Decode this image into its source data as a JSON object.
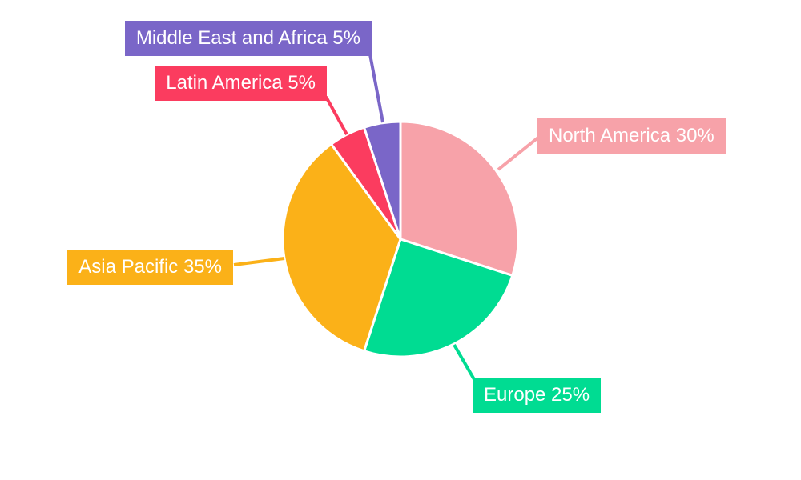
{
  "chart_data": {
    "type": "pie",
    "title": "",
    "direction": "clockwise",
    "start_angle_deg": 0,
    "background_color": "#ffffff",
    "label_text_color": "#ffffff",
    "slice_border_color": "#ffffff",
    "slices": [
      {
        "label": "North America",
        "value": 30,
        "display": "North America 30%",
        "color": "#F7A2A9"
      },
      {
        "label": "Europe",
        "value": 25,
        "display": "Europe 25%",
        "color": "#00DC92"
      },
      {
        "label": "Asia Pacific",
        "value": 35,
        "display": "Asia Pacific 35%",
        "color": "#FBB118"
      },
      {
        "label": "Latin America",
        "value": 5,
        "display": "Latin America 5%",
        "color": "#FB3C5F"
      },
      {
        "label": "Middle East and Africa",
        "value": 5,
        "display": "Middle East and Africa 5%",
        "color": "#7A66C8"
      }
    ]
  }
}
